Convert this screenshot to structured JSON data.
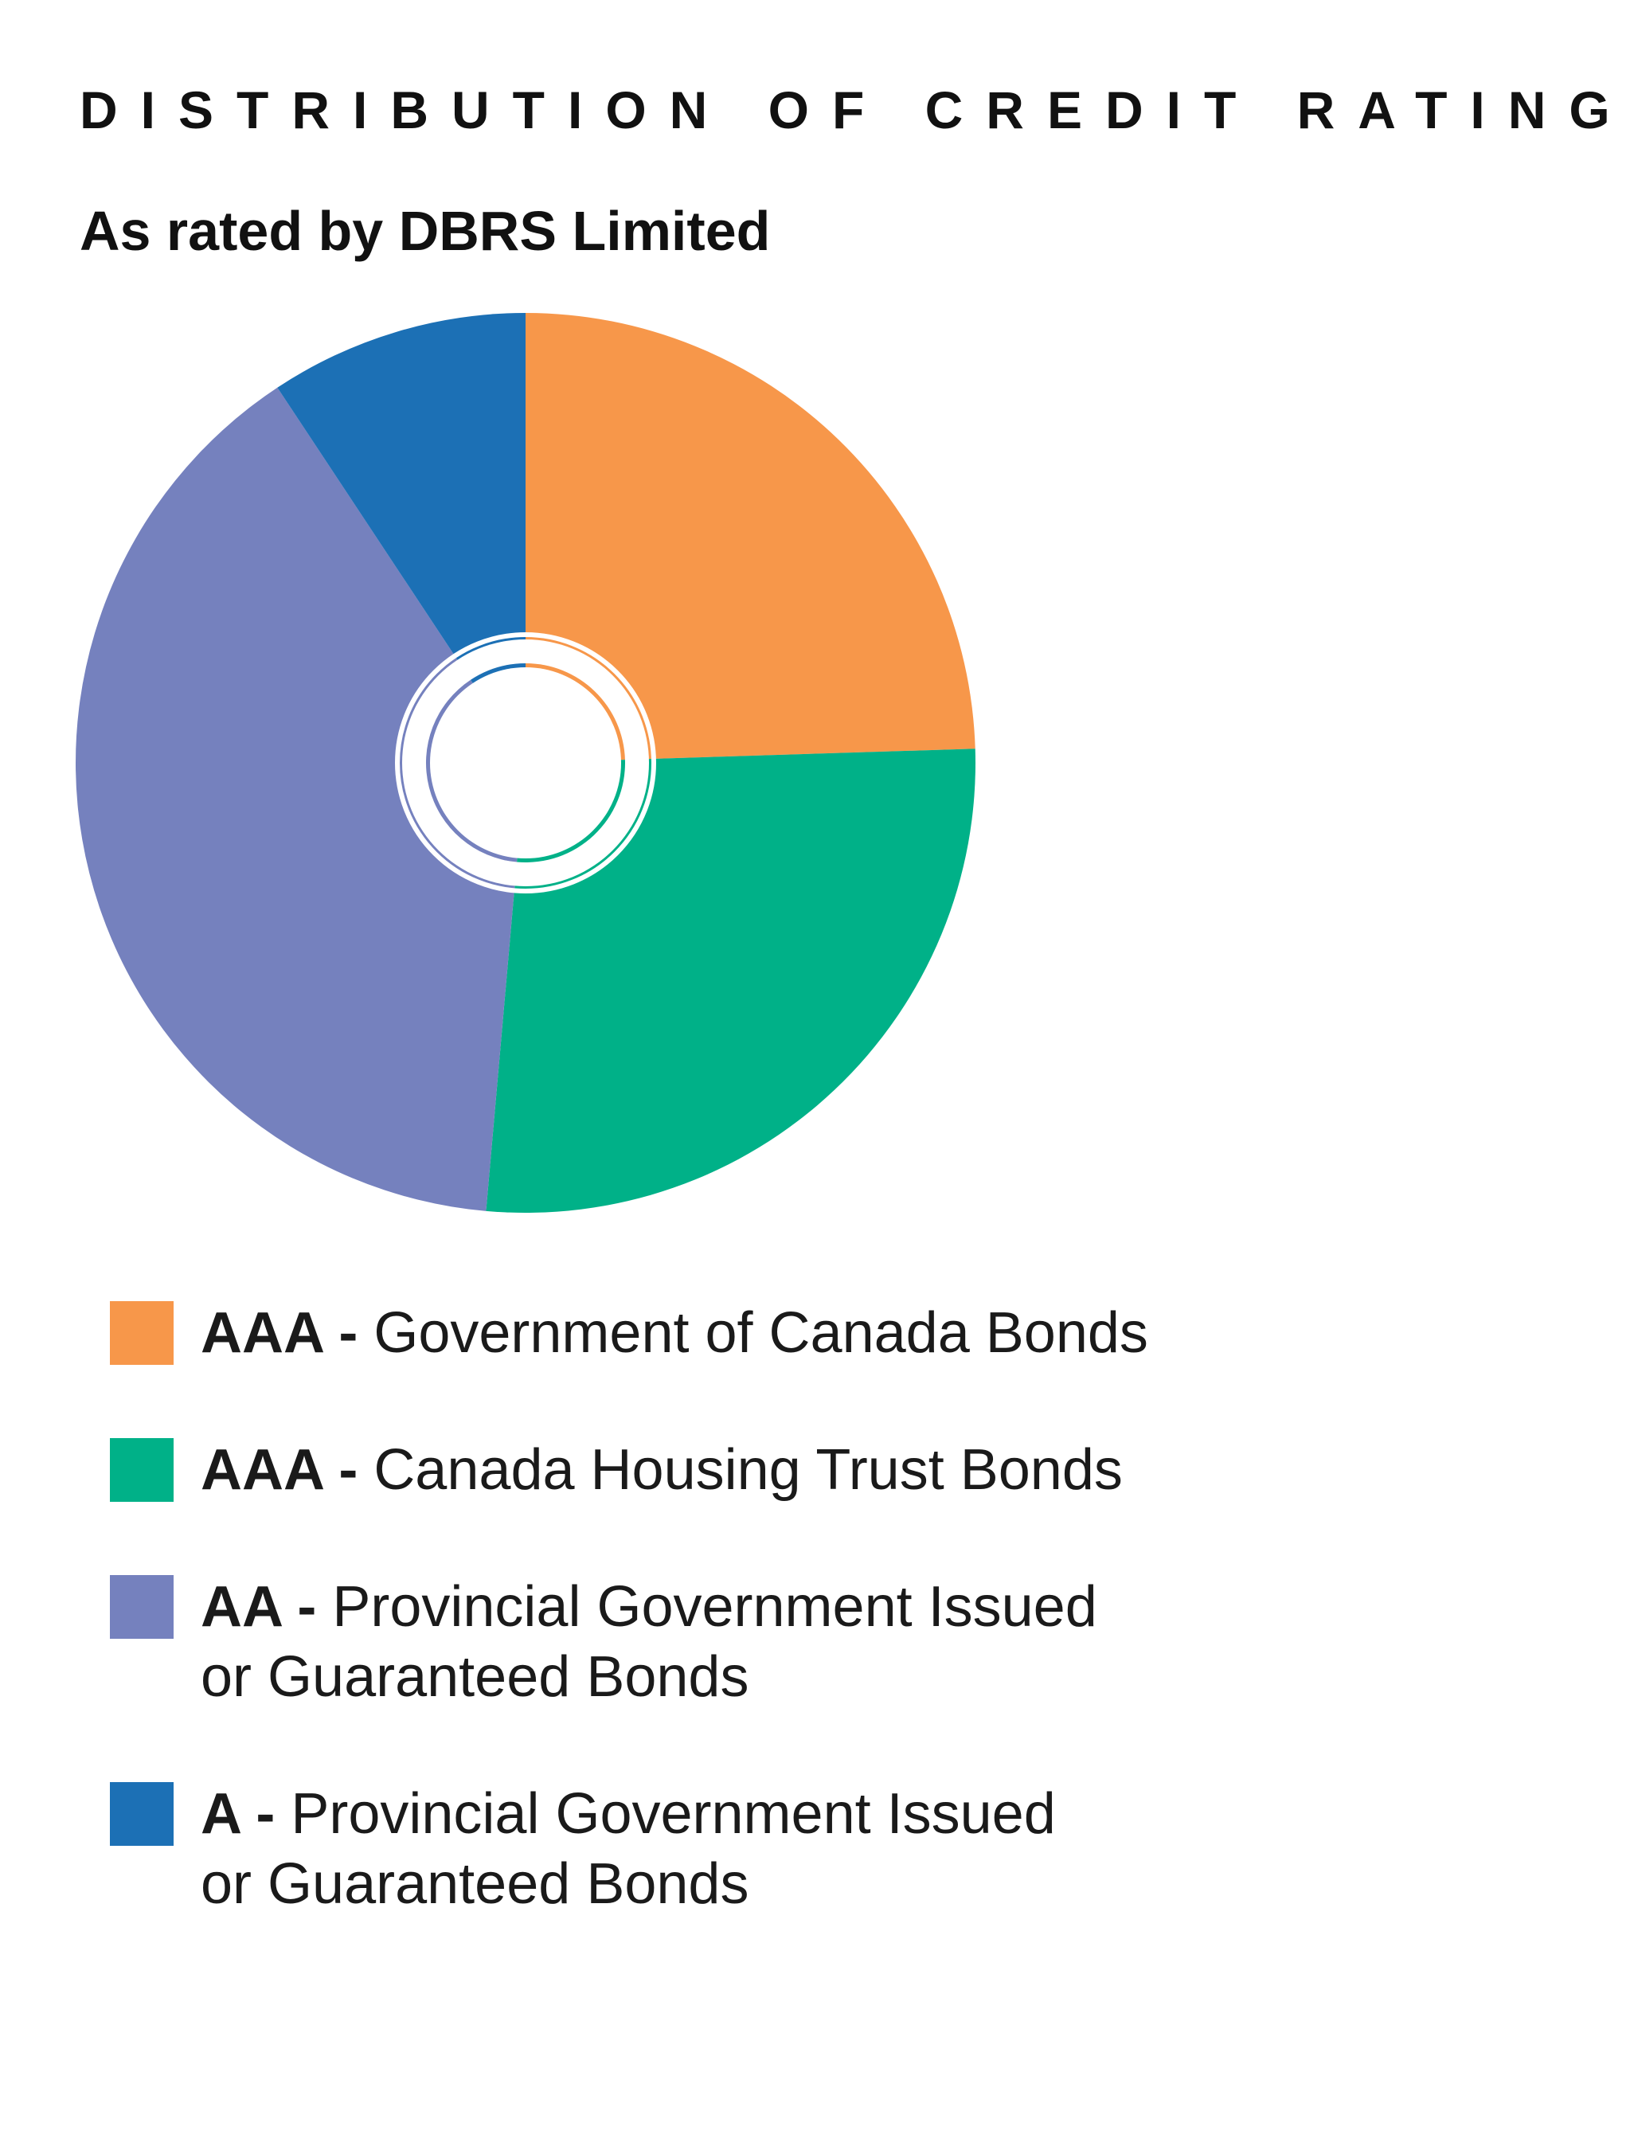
{
  "title": "DISTRIBUTION OF CREDIT RATINGS",
  "subtitle": "As rated by DBRS Limited",
  "chart_data": {
    "type": "pie",
    "title": "DISTRIBUTION OF CREDIT RATINGS",
    "subtitle": "As rated by DBRS Limited",
    "categories": [
      "AAA - Government of Canada Bonds",
      "AAA - Canada Housing Trust Bonds",
      "AA - Provincial Government Issued or Guaranteed Bonds",
      "A - Provincial Government Issued or Guaranteed Bonds"
    ],
    "values": [
      24.5,
      26.9,
      39.3,
      9.3
    ],
    "unit": "%",
    "colors": [
      "#F7974A",
      "#00B188",
      "#7581BE",
      "#1C70B5"
    ],
    "inner_ring": {
      "style": "thin ring segments with white outline",
      "values": [
        24.5,
        26.9,
        39.3,
        9.3
      ]
    },
    "legend_position": "bottom"
  },
  "legend": [
    {
      "rating": "AAA -",
      "desc_line1": "Government of Canada Bonds",
      "desc_line2": "",
      "color": "#F7974A"
    },
    {
      "rating": "AAA -",
      "desc_line1": " Canada Housing Trust Bonds",
      "desc_line2": "",
      "color": "#00B188"
    },
    {
      "rating": "AA -",
      "desc_line1": "Provincial Government Issued",
      "desc_line2": "or Guaranteed Bonds",
      "color": "#7581BE"
    },
    {
      "rating": "A -",
      "desc_line1": "Provincial Government Issued",
      "desc_line2": "or Guaranteed Bonds",
      "color": "#1C70B5"
    }
  ]
}
